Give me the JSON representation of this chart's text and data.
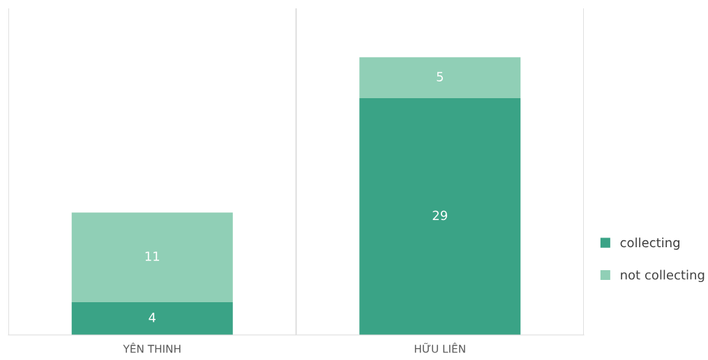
{
  "chart_data": {
    "type": "bar",
    "stacked": true,
    "categories": [
      "YÊN THINH",
      "HỮU LIÊN"
    ],
    "series": [
      {
        "name": "collecting",
        "color": "#3aa386",
        "values": [
          4,
          29
        ]
      },
      {
        "name": "not collecting",
        "color": "#90cfb6",
        "values": [
          11,
          5
        ]
      }
    ],
    "ylim": [
      0,
      40
    ],
    "tick_labels": "x",
    "data_labels": true,
    "grid": "x",
    "legend": "right"
  }
}
